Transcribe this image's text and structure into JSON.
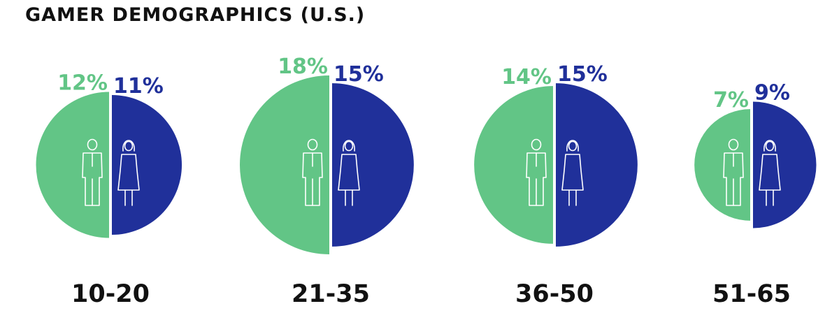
{
  "colors": {
    "female": "#62C586",
    "male": "#20309A",
    "icon": "#ffffff",
    "text": "#111111"
  },
  "icons": {
    "left_half": "man-icon",
    "right_half": "woman-icon"
  },
  "chart_data": {
    "type": "pie",
    "title": "GAMER DEMOGRAPHICS (U.S.)",
    "categories": [
      "10-20",
      "21-35",
      "36-50",
      "51-65"
    ],
    "series": [
      {
        "values": [
          12,
          18,
          14,
          7
        ]
      },
      {
        "values": [
          11,
          15,
          15,
          9
        ]
      }
    ],
    "value_labels": [
      [
        "12%",
        "18%",
        "14%",
        "7%"
      ],
      [
        "11%",
        "15%",
        "15%",
        "9%"
      ]
    ],
    "unit": "%",
    "legend": "none"
  }
}
